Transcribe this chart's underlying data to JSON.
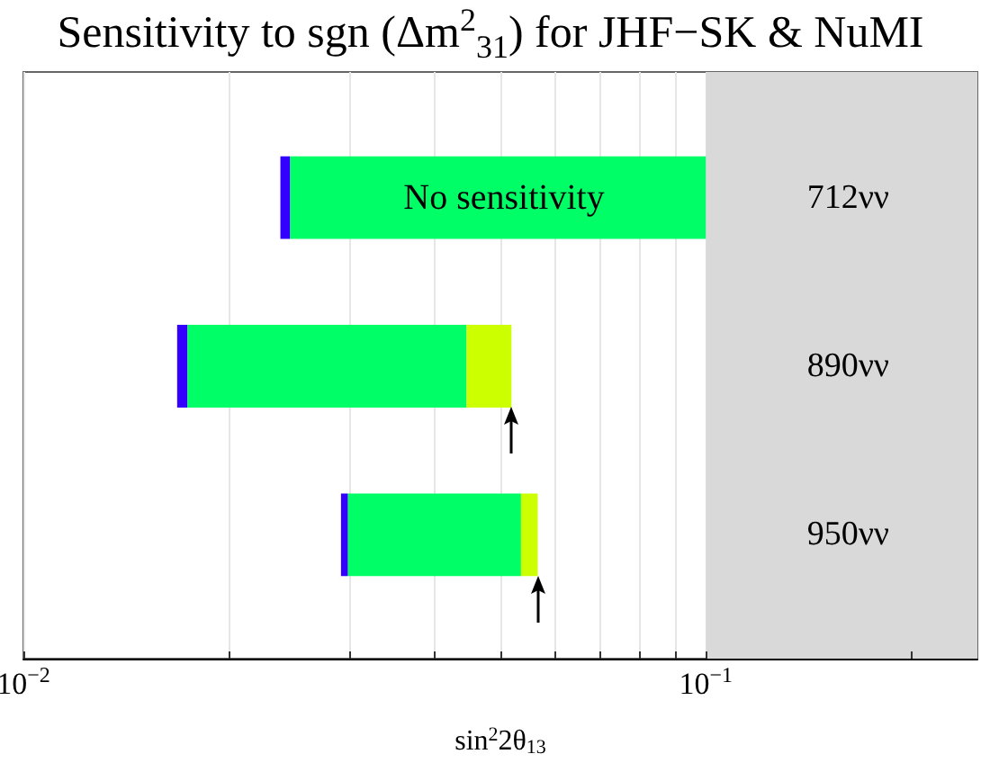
{
  "chart_data": {
    "type": "bar",
    "orientation": "horizontal",
    "title": "Sensitivity to sgn (Δm$^{2}$$_{31}$) for JHF−SK & NuMI",
    "xlabel": "sin$^{2}$2θ$_{13}$",
    "categories": [
      "712νν",
      "890νν",
      "950νν"
    ],
    "series": [
      {
        "color": "#3300ff",
        "base": [
          0.0238,
          0.0168,
          0.0292
        ],
        "values": [
          0.0008,
          0.0006,
          0.0007
        ]
      },
      {
        "color": "#00ff66",
        "base": [
          0.0246,
          0.0174,
          0.0299
        ],
        "values": [
          0.0754,
          0.0272,
          0.0237
        ]
      },
      {
        "color": "#ccff00",
        "base": [
          null,
          0.0446,
          0.0536
        ],
        "values": [
          null,
          0.0073,
          0.0031
        ]
      }
    ],
    "log": "x",
    "xlim": [
      0.01,
      0.25
    ],
    "xticks": [
      {
        "value": 0.01,
        "label": "10$^{−2}$"
      },
      {
        "value": 0.02,
        "label": null
      },
      {
        "value": 0.03,
        "label": null
      },
      {
        "value": 0.04,
        "label": null
      },
      {
        "value": 0.05,
        "label": null
      },
      {
        "value": 0.06,
        "label": null
      },
      {
        "value": 0.07,
        "label": null
      },
      {
        "value": 0.08,
        "label": null
      },
      {
        "value": 0.09,
        "label": null
      },
      {
        "value": 0.1,
        "label": "10$^{−1}$"
      },
      {
        "value": 0.2,
        "label": null
      }
    ],
    "grid": "x",
    "bands": [
      {
        "axis": "x",
        "from": 0.1,
        "to": 0.25,
        "color": "#d9d9d9"
      }
    ],
    "annotations": [
      "No sensitivity"
    ]
  }
}
